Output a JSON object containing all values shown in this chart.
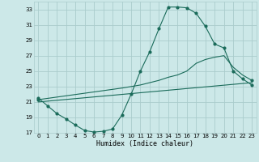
{
  "xlabel": "Humidex (Indice chaleur)",
  "bg_color": "#cce8e8",
  "grid_color": "#aacccc",
  "line_color": "#1a6b5a",
  "xlim": [
    -0.5,
    23.5
  ],
  "ylim": [
    17,
    34
  ],
  "yticks": [
    17,
    19,
    21,
    23,
    25,
    27,
    29,
    31,
    33
  ],
  "xticks": [
    0,
    1,
    2,
    3,
    4,
    5,
    6,
    7,
    8,
    9,
    10,
    11,
    12,
    13,
    14,
    15,
    16,
    17,
    18,
    19,
    20,
    21,
    22,
    23
  ],
  "line1_x": [
    0,
    1,
    2,
    3,
    4,
    5,
    6,
    7,
    8,
    9,
    10,
    11,
    12,
    13,
    14,
    15,
    16,
    17,
    18,
    19,
    20,
    21,
    22,
    23
  ],
  "line1_y": [
    21.5,
    20.5,
    19.5,
    18.8,
    18.0,
    17.3,
    17.1,
    17.2,
    17.5,
    19.3,
    22.0,
    25.0,
    27.5,
    30.5,
    33.3,
    33.3,
    33.2,
    32.5,
    30.8,
    28.5,
    28.0,
    25.0,
    24.0,
    23.2
  ],
  "line2_x": [
    0,
    9,
    10,
    11,
    12,
    13,
    14,
    15,
    16,
    17,
    18,
    19,
    20,
    21,
    22,
    23
  ],
  "line2_y": [
    21.3,
    22.8,
    23.0,
    23.2,
    23.5,
    23.8,
    24.2,
    24.5,
    25.0,
    26.0,
    26.5,
    26.8,
    27.0,
    25.5,
    24.5,
    23.8
  ],
  "line3_x": [
    0,
    23
  ],
  "line3_y": [
    21.0,
    23.5
  ],
  "marker_size": 2.0,
  "line_width": 0.8,
  "tick_fontsize": 5,
  "xlabel_fontsize": 6
}
